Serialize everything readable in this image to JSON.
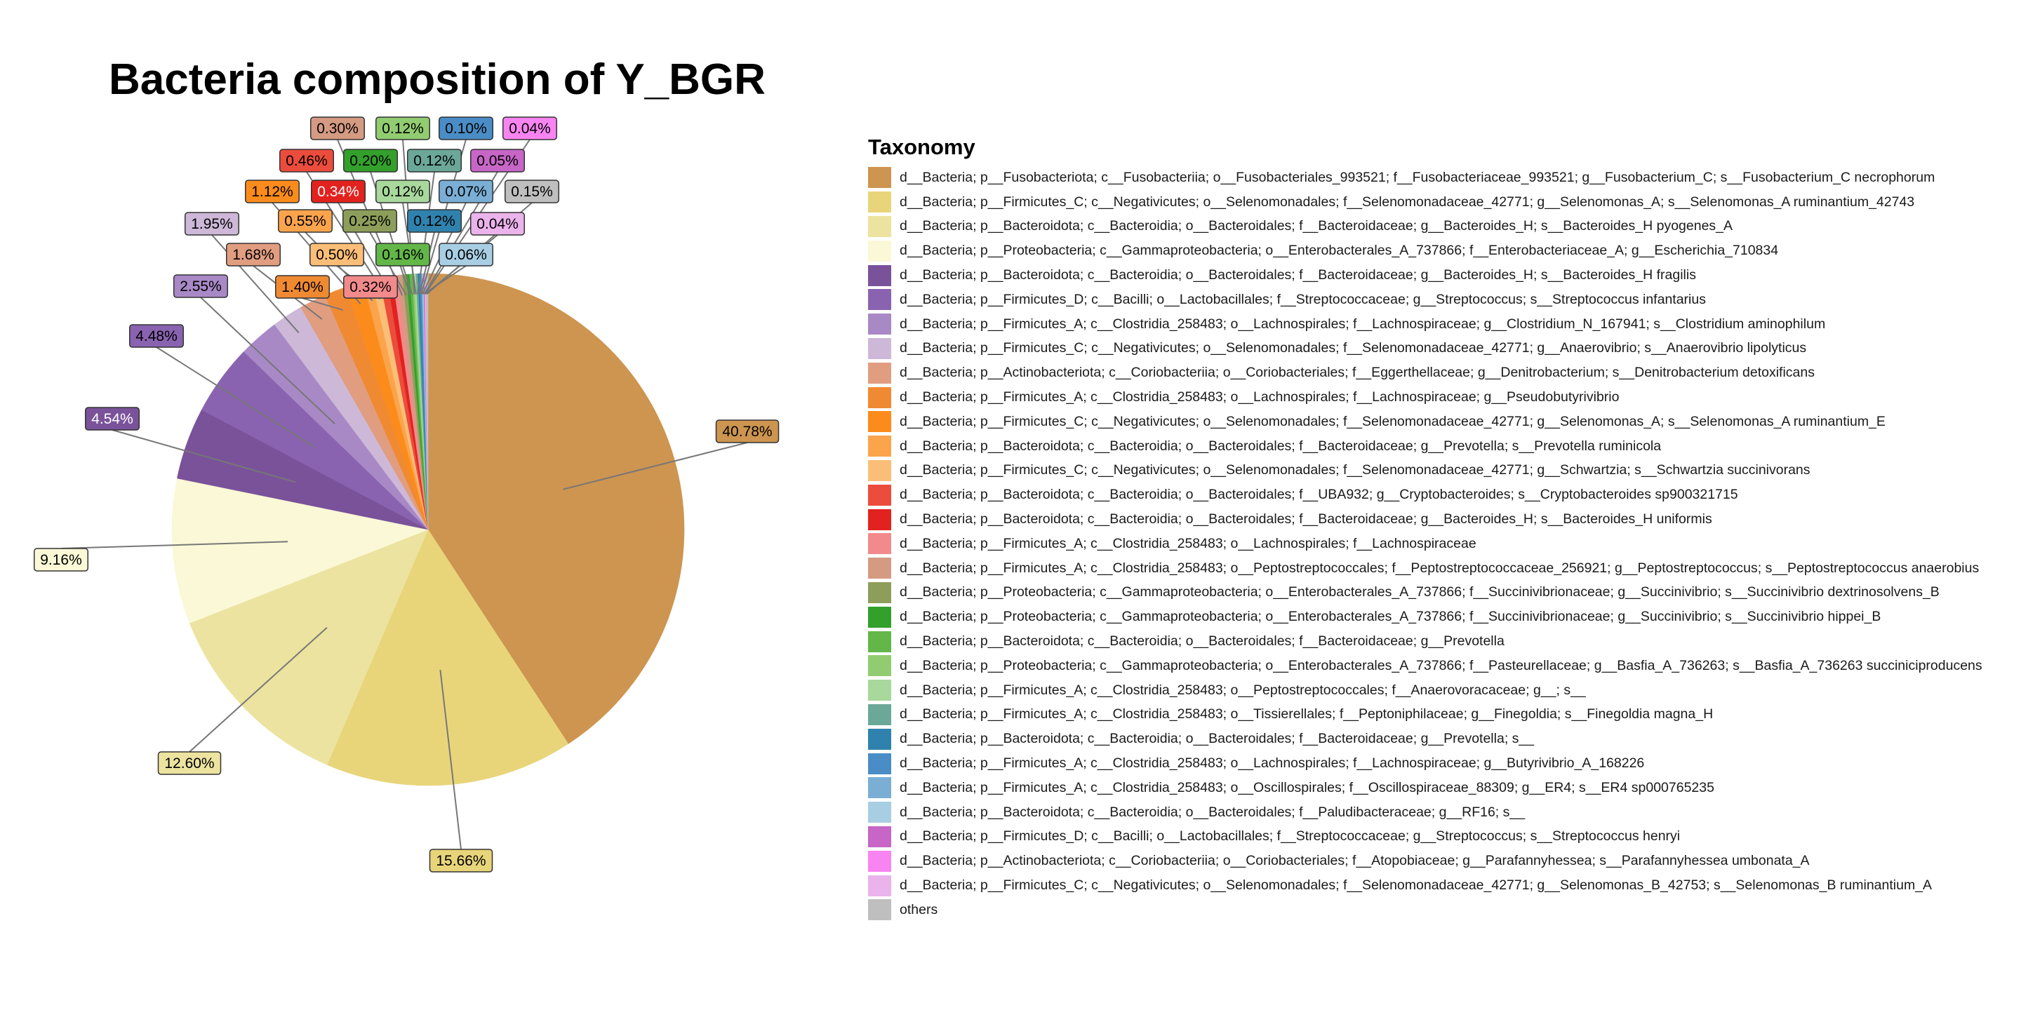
{
  "chart_data": {
    "type": "pie",
    "title": "Bacteria composition of Y_BGR",
    "legend_title": "Taxonomy",
    "legend_position": "right",
    "slices": [
      {
        "label": "d__Bacteria; p__Fusobacteriota; c__Fusobacteriia; o__Fusobacteriales_993521; f__Fusobacteriaceae_993521; g__Fusobacterium_C; s__Fusobacterium_C necrophorum",
        "value": 40.78,
        "value_label": "40.78%",
        "color": "#CD9550"
      },
      {
        "label": "d__Bacteria; p__Firmicutes_C; c__Negativicutes; o__Selenomonadales; f__Selenomonadaceae_42771; g__Selenomonas_A; s__Selenomonas_A ruminantium_42743",
        "value": 15.66,
        "value_label": "15.66%",
        "color": "#E8D57A"
      },
      {
        "label": "d__Bacteria; p__Bacteroidota; c__Bacteroidia; o__Bacteroidales; f__Bacteroidaceae; g__Bacteroides_H; s__Bacteroides_H pyogenes_A",
        "value": 12.6,
        "value_label": "12.60%",
        "color": "#ECE3A0"
      },
      {
        "label": "d__Bacteria; p__Proteobacteria; c__Gammaproteobacteria; o__Enterobacterales_A_737866; f__Enterobacteriaceae_A; g__Escherichia_710834",
        "value": 9.16,
        "value_label": "9.16%",
        "color": "#FAF8D6"
      },
      {
        "label": "d__Bacteria; p__Bacteroidota; c__Bacteroidia; o__Bacteroidales; f__Bacteroidaceae; g__Bacteroides_H; s__Bacteroides_H fragilis",
        "value": 4.54,
        "value_label": "4.54%",
        "color": "#7A529A"
      },
      {
        "label": "d__Bacteria; p__Firmicutes_D; c__Bacilli; o__Lactobacillales; f__Streptococcaceae; g__Streptococcus; s__Streptococcus infantarius",
        "value": 4.48,
        "value_label": "4.48%",
        "color": "#8A63B0"
      },
      {
        "label": "d__Bacteria; p__Firmicutes_A; c__Clostridia_258483; o__Lachnospirales; f__Lachnospiraceae; g__Clostridium_N_167941; s__Clostridium aminophilum",
        "value": 2.55,
        "value_label": "2.55%",
        "color": "#A889C6"
      },
      {
        "label": "d__Bacteria; p__Firmicutes_C; c__Negativicutes; o__Selenomonadales; f__Selenomonadaceae_42771; g__Anaerovibrio; s__Anaerovibrio lipolyticus",
        "value": 1.95,
        "value_label": "1.95%",
        "color": "#CDB8D8"
      },
      {
        "label": "d__Bacteria; p__Actinobacteriota; c__Coriobacteriia; o__Coriobacteriales; f__Eggerthellaceae; g__Denitrobacterium; s__Denitrobacterium detoxificans",
        "value": 1.68,
        "value_label": "1.68%",
        "color": "#E19D80"
      },
      {
        "label": "d__Bacteria; p__Firmicutes_A; c__Clostridia_258483; o__Lachnospirales; f__Lachnospiraceae; g__Pseudobutyrivibrio",
        "value": 1.4,
        "value_label": "1.40%",
        "color": "#F08A32"
      },
      {
        "label": "d__Bacteria; p__Firmicutes_C; c__Negativicutes; o__Selenomonadales; f__Selenomonadaceae_42771; g__Selenomonas_A; s__Selenomonas_A ruminantium_E",
        "value": 1.12,
        "value_label": "1.12%",
        "color": "#FB8C1C"
      },
      {
        "label": "d__Bacteria; p__Bacteroidota; c__Bacteroidia; o__Bacteroidales; f__Bacteroidaceae; g__Prevotella; s__Prevotella ruminicola",
        "value": 0.55,
        "value_label": "0.55%",
        "color": "#FBA44C"
      },
      {
        "label": "d__Bacteria; p__Firmicutes_C; c__Negativicutes; o__Selenomonadales; f__Selenomonadaceae_42771; g__Schwartzia; s__Schwartzia succinivorans",
        "value": 0.5,
        "value_label": "0.50%",
        "color": "#FBBE78"
      },
      {
        "label": "d__Bacteria; p__Bacteroidota; c__Bacteroidia; o__Bacteroidales; f__UBA932; g__Cryptobacteroides; s__Cryptobacteroides sp900321715",
        "value": 0.46,
        "value_label": "0.46%",
        "color": "#EC4C3C"
      },
      {
        "label": "d__Bacteria; p__Bacteroidota; c__Bacteroidia; o__Bacteroidales; f__Bacteroidaceae; g__Bacteroides_H; s__Bacteroides_H uniformis",
        "value": 0.34,
        "value_label": "0.34%",
        "color": "#E2221E"
      },
      {
        "label": "d__Bacteria; p__Firmicutes_A; c__Clostridia_258483; o__Lachnospirales; f__Lachnospiraceae",
        "value": 0.32,
        "value_label": "0.32%",
        "color": "#F28A8C"
      },
      {
        "label": "d__Bacteria; p__Firmicutes_A; c__Clostridia_258483; o__Peptostreptococcales; f__Peptostreptococcaceae_256921; g__Peptostreptococcus; s__Peptostreptococcus anaerobius",
        "value": 0.3,
        "value_label": "0.30%",
        "color": "#D49A82"
      },
      {
        "label": "d__Bacteria; p__Proteobacteria; c__Gammaproteobacteria; o__Enterobacterales_A_737866; f__Succinivibrionaceae; g__Succinivibrio; s__Succinivibrio dextrinosolvens_B",
        "value": 0.25,
        "value_label": "0.25%",
        "color": "#8D9E5A"
      },
      {
        "label": "d__Bacteria; p__Proteobacteria; c__Gammaproteobacteria; o__Enterobacterales_A_737866; f__Succinivibrionaceae; g__Succinivibrio; s__Succinivibrio hippei_B",
        "value": 0.2,
        "value_label": "0.20%",
        "color": "#33A02C"
      },
      {
        "label": "d__Bacteria; p__Bacteroidota; c__Bacteroidia; o__Bacteroidales; f__Bacteroidaceae; g__Prevotella",
        "value": 0.16,
        "value_label": "0.16%",
        "color": "#62B748"
      },
      {
        "label": "d__Bacteria; p__Proteobacteria; c__Gammaproteobacteria; o__Enterobacterales_A_737866; f__Pasteurellaceae; g__Basfia_A_736263; s__Basfia_A_736263 succiniciproducens",
        "value": 0.12,
        "value_label": "0.12%",
        "color": "#92CC70"
      },
      {
        "label": "d__Bacteria; p__Firmicutes_A; c__Clostridia_258483; o__Peptostreptococcales; f__Anaerovoracaceae; g__; s__",
        "value": 0.12,
        "value_label": "0.12%",
        "color": "#A8D89C"
      },
      {
        "label": "d__Bacteria; p__Firmicutes_A; c__Clostridia_258483; o__Tissierellales; f__Peptoniphilaceae; g__Finegoldia; s__Finegoldia magna_H",
        "value": 0.12,
        "value_label": "0.12%",
        "color": "#6BA898"
      },
      {
        "label": "d__Bacteria; p__Bacteroidota; c__Bacteroidia; o__Bacteroidales; f__Bacteroidaceae; g__Prevotella; s__",
        "value": 0.12,
        "value_label": "0.12%",
        "color": "#2F82AD"
      },
      {
        "label": "d__Bacteria; p__Firmicutes_A; c__Clostridia_258483; o__Lachnospirales; f__Lachnospiraceae; g__Butyrivibrio_A_168226",
        "value": 0.1,
        "value_label": "0.10%",
        "color": "#4A8DC6"
      },
      {
        "label": "d__Bacteria; p__Firmicutes_A; c__Clostridia_258483; o__Oscillospirales; f__Oscillospiraceae_88309; g__ER4; s__ER4 sp000765235",
        "value": 0.07,
        "value_label": "0.07%",
        "color": "#7AAED4"
      },
      {
        "label": "d__Bacteria; p__Bacteroidota; c__Bacteroidia; o__Bacteroidales; f__Paludibacteraceae; g__RF16; s__",
        "value": 0.06,
        "value_label": "0.06%",
        "color": "#A8CEE4"
      },
      {
        "label": "d__Bacteria; p__Firmicutes_D; c__Bacilli; o__Lactobacillales; f__Streptococcaceae; g__Streptococcus; s__Streptococcus henryi",
        "value": 0.05,
        "value_label": "0.05%",
        "color": "#C766C7"
      },
      {
        "label": "d__Bacteria; p__Actinobacteriota; c__Coriobacteriia; o__Coriobacteriales; f__Atopobiaceae; g__Parafannyhessea; s__Parafannyhessea umbonata_A",
        "value": 0.04,
        "value_label": "0.04%",
        "color": "#F884F2"
      },
      {
        "label": "d__Bacteria; p__Firmicutes_C; c__Negativicutes; o__Selenomonadales; f__Selenomonadaceae_42771; g__Selenomonas_B_42753; s__Selenomonas_B ruminantium_A",
        "value": 0.04,
        "value_label": "0.04%",
        "color": "#EBB3EB"
      },
      {
        "label": "others",
        "value": 0.15,
        "value_label": "0.15%",
        "color": "#BFBFBF"
      }
    ]
  }
}
